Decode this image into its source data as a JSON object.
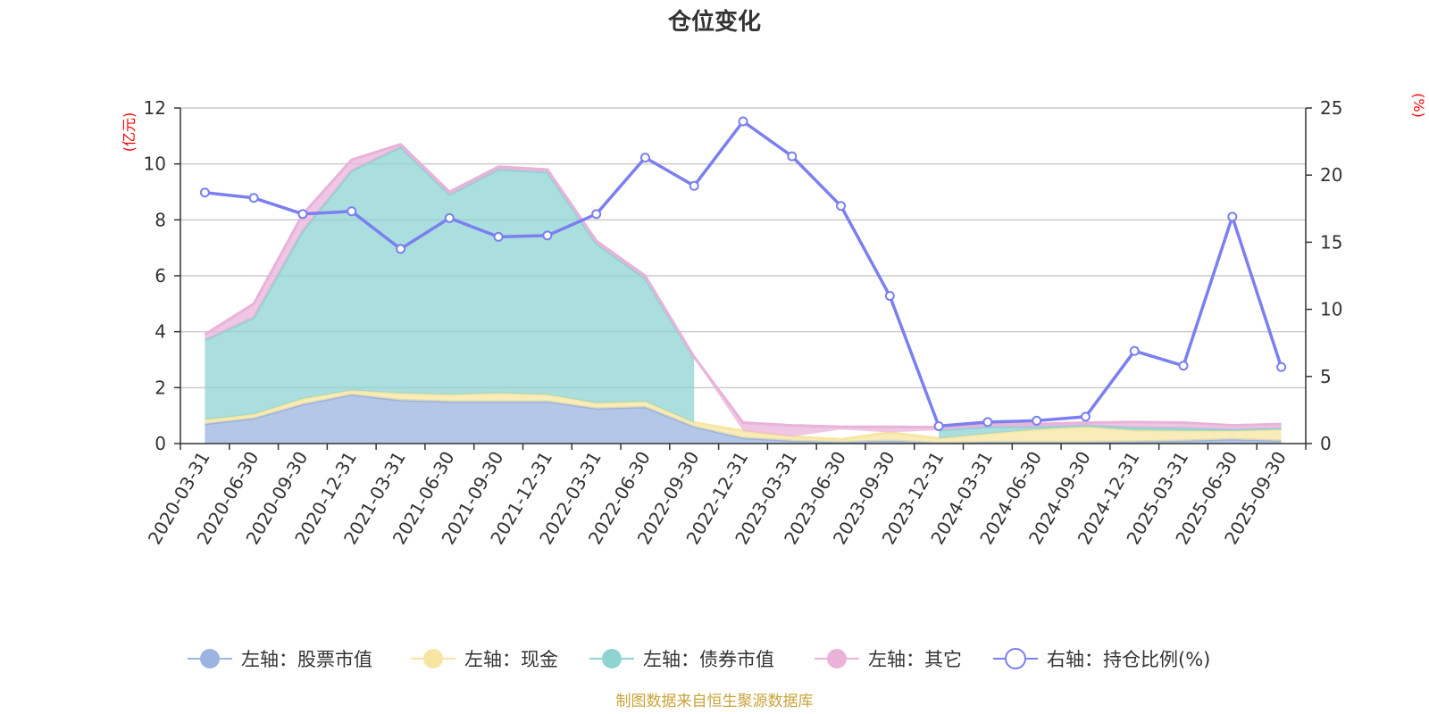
{
  "chart_data": {
    "type": "area",
    "title": "仓位变化",
    "left_axis_unit": "(亿元)",
    "right_axis_unit": "(%)",
    "left_ylim": [
      0,
      12
    ],
    "left_ticks": [
      0,
      2,
      4,
      6,
      8,
      10,
      12
    ],
    "right_ylim": [
      0,
      25
    ],
    "right_ticks": [
      0,
      5,
      10,
      15,
      20,
      25
    ],
    "categories": [
      "2020-03-31",
      "2020-06-30",
      "2020-09-30",
      "2020-12-31",
      "2021-03-31",
      "2021-06-30",
      "2021-09-30",
      "2021-12-31",
      "2022-03-31",
      "2022-06-30",
      "2022-09-30",
      "2022-12-31",
      "2023-03-31",
      "2023-06-30",
      "2023-09-30",
      "2023-12-31",
      "2024-03-31",
      "2024-06-30",
      "2024-09-30",
      "2024-12-31",
      "2025-03-31",
      "2025-06-30",
      "2025-09-30"
    ],
    "series": [
      {
        "name": "左轴：股票市值",
        "axis": "left",
        "kind": "stacked-area",
        "color": "#9bb4e0",
        "values": [
          0.7,
          0.9,
          1.4,
          1.75,
          1.55,
          1.5,
          1.5,
          1.5,
          1.25,
          1.3,
          0.6,
          0.2,
          0.1,
          0.05,
          0.1,
          0.03,
          0.05,
          0.05,
          0.05,
          0.07,
          0.1,
          0.15,
          0.1
        ]
      },
      {
        "name": "左轴：现金",
        "axis": "left",
        "kind": "stacked-area",
        "color": "#f7e6a2",
        "values": [
          0.15,
          0.15,
          0.2,
          0.15,
          0.25,
          0.25,
          0.3,
          0.25,
          0.2,
          0.2,
          0.15,
          0.25,
          0.15,
          0.1,
          0.3,
          0.15,
          0.3,
          0.45,
          0.55,
          0.4,
          0.35,
          0.3,
          0.4
        ]
      },
      {
        "name": "左轴：债券市值",
        "axis": "left",
        "kind": "stacked-area",
        "color": "#8fd3d3",
        "values": [
          2.85,
          3.45,
          6.0,
          7.85,
          8.8,
          7.15,
          8.0,
          7.95,
          5.7,
          4.4,
          2.3,
          null,
          null,
          0.35,
          null,
          0.3,
          0.25,
          0.1,
          0.05,
          0.1,
          0.1,
          0.05,
          0.05
        ]
      },
      {
        "name": "左轴：其它",
        "axis": "left",
        "kind": "stacked-area",
        "color": "#e9b3d9",
        "values": [
          0.2,
          0.5,
          0.6,
          0.4,
          0.1,
          0.1,
          0.1,
          0.1,
          0.1,
          0.1,
          0.05,
          0.3,
          0.4,
          0.1,
          0.2,
          0.1,
          0.1,
          0.1,
          0.1,
          0.2,
          0.2,
          0.15,
          0.15
        ]
      },
      {
        "name": "右轴：持仓比例(%)",
        "axis": "right",
        "kind": "line",
        "color": "#7b7ff0",
        "values": [
          18.7,
          18.3,
          17.1,
          17.3,
          14.5,
          16.8,
          15.4,
          15.5,
          17.1,
          21.3,
          19.2,
          24.0,
          21.4,
          17.7,
          11.0,
          1.3,
          1.6,
          1.7,
          2.0,
          6.9,
          5.8,
          16.9,
          5.7
        ]
      }
    ]
  },
  "footer": {
    "source": "制图数据来自恒生聚源数据库",
    "source_color": "#c9a33b"
  },
  "colors": {
    "axis_unit": "#ff0000",
    "grid": "#cccccc",
    "axis_line": "#333333"
  }
}
